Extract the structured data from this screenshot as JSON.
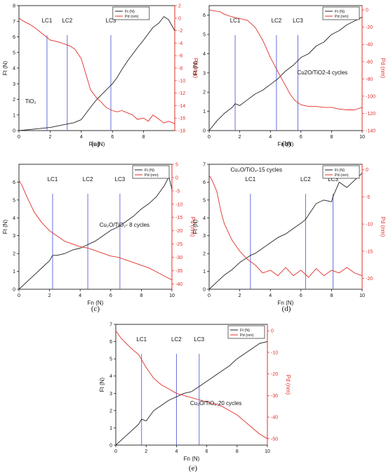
{
  "chart_data": [
    {
      "panel": "a",
      "caption": "(a)",
      "type": "line",
      "xlabel": "Fn (N)",
      "ylabel": "Ft (N)",
      "y2label": "Pd (nm)",
      "xlim": [
        0,
        10
      ],
      "ylim": [
        0,
        8
      ],
      "y2lim": [
        -18,
        2
      ],
      "xticks": [
        0,
        2,
        4,
        6,
        8
      ],
      "xtick_labels": [
        "0",
        "2",
        "4",
        "6",
        "8"
      ],
      "yticks": [
        0,
        1,
        2,
        3,
        4,
        5,
        6,
        7,
        8
      ],
      "ytick_labels": [
        "0",
        "1",
        "2",
        "3",
        "4",
        "5",
        "6",
        "7",
        "8"
      ],
      "y2ticks": [
        -18,
        -16,
        -14,
        -12,
        -10,
        -8,
        -6,
        -4,
        -2,
        0,
        2
      ],
      "y2tick_labels": [
        "-18",
        "-16",
        "-14",
        "-12",
        "-10",
        "-8",
        "-6",
        "-4",
        "-2",
        "0",
        "2"
      ],
      "legend": [
        "Ft (N)",
        "Pd (nm)"
      ],
      "legend_position": "top-center",
      "label": "TiO₂",
      "label_position": "left-middle",
      "critical_loads": [
        {
          "name": "LC1",
          "x": 1.8
        },
        {
          "name": "LC2",
          "x": 3.1
        },
        {
          "name": "LC3",
          "x": 5.9
        }
      ],
      "series": [
        {
          "name": "Ft (N)",
          "axis": "left",
          "x": [
            0,
            0.5,
            1,
            1.5,
            2,
            2.5,
            3,
            3.5,
            4,
            4.3,
            4.6,
            5,
            5.3,
            5.6,
            6,
            6.3,
            6.6,
            7,
            7.3,
            7.6,
            8,
            8.3,
            8.6,
            9,
            9.3,
            9.6,
            10
          ],
          "y": [
            0,
            0.05,
            0.1,
            0.15,
            0.2,
            0.3,
            0.4,
            0.5,
            0.7,
            1.1,
            1.5,
            2.0,
            2.3,
            2.6,
            3.0,
            3.4,
            3.9,
            4.5,
            4.9,
            5.3,
            5.8,
            6.2,
            6.6,
            6.9,
            7.3,
            7.1,
            6.4
          ]
        },
        {
          "name": "Pd (nm)",
          "axis": "right",
          "x": [
            0,
            0.3,
            0.7,
            1,
            1.5,
            2,
            2.5,
            3,
            3.3,
            3.6,
            4,
            4.3,
            4.6,
            5,
            5.3,
            5.6,
            6,
            6.3,
            6.6,
            7,
            7.3,
            7.6,
            8,
            8.3,
            8.6,
            9,
            9.3,
            9.6,
            10
          ],
          "y": [
            0,
            -0.5,
            -1,
            -1.5,
            -2.5,
            -3.5,
            -3.8,
            -4.2,
            -4.5,
            -5,
            -6.5,
            -9,
            -11.5,
            -12.8,
            -13.5,
            -14.3,
            -14.8,
            -15,
            -14.8,
            -15.2,
            -15.5,
            -16.2,
            -16,
            -16.5,
            -15.5,
            -16.2,
            -16.8,
            -16.5,
            -16.9
          ]
        }
      ]
    },
    {
      "panel": "b",
      "caption": "(b)",
      "type": "line",
      "xlabel": "Fn (N)",
      "ylabel": "Ft (N)",
      "y2label": "Pd (nm)",
      "xlim": [
        0,
        10
      ],
      "ylim": [
        0,
        6.5
      ],
      "y2lim": [
        -140,
        5
      ],
      "xticks": [
        0,
        2,
        4,
        6,
        8,
        10
      ],
      "xtick_labels": [
        "0",
        "2",
        "4",
        "6",
        "8",
        "10"
      ],
      "yticks": [
        0,
        1,
        2,
        3,
        4,
        5,
        6
      ],
      "ytick_labels": [
        "0",
        "1",
        "2",
        "3",
        "4",
        "5",
        "6"
      ],
      "y2ticks": [
        -140,
        -120,
        -100,
        -80,
        -60,
        -40,
        -20,
        0
      ],
      "y2tick_labels": [
        "-140",
        "-120",
        "-100",
        "-80",
        "-60",
        "-40",
        "-20",
        "0"
      ],
      "legend": [
        "Ft (N)",
        "Pd (nm)"
      ],
      "legend_position": "top-right",
      "label": "Cu2O/TiO2-4 cycles",
      "label_position": "right-middle",
      "critical_loads": [
        {
          "name": "LC1",
          "x": 1.7
        },
        {
          "name": "LC2",
          "x": 4.4
        },
        {
          "name": "LC3",
          "x": 5.8
        }
      ],
      "series": [
        {
          "name": "Ft (N)",
          "axis": "left",
          "x": [
            0,
            0.5,
            1,
            1.5,
            1.7,
            2,
            2.5,
            3,
            3.5,
            4,
            4.5,
            5,
            5.5,
            6,
            6.5,
            7,
            7.5,
            8,
            8.5,
            9,
            9.5,
            10
          ],
          "y": [
            0,
            0.5,
            0.9,
            1.2,
            1.4,
            1.3,
            1.6,
            1.9,
            2.1,
            2.4,
            2.7,
            3.1,
            3.4,
            3.8,
            4.0,
            4.4,
            4.6,
            5.0,
            5.2,
            5.5,
            5.7,
            5.9
          ]
        },
        {
          "name": "Pd (nm)",
          "axis": "right",
          "x": [
            0,
            0.3,
            0.7,
            1,
            1.5,
            2,
            2.5,
            3,
            3.5,
            4,
            4.5,
            5,
            5.3,
            5.6,
            6,
            6.5,
            7,
            7.5,
            8,
            8.5,
            9,
            9.5,
            10
          ],
          "y": [
            0,
            -1,
            -2,
            -5,
            -8,
            -10,
            -12,
            -20,
            -35,
            -55,
            -72,
            -88,
            -98,
            -105,
            -110,
            -112,
            -112,
            -113,
            -113,
            -115,
            -116,
            -116,
            -113
          ]
        }
      ]
    },
    {
      "panel": "c",
      "caption": "(c)",
      "type": "line",
      "xlabel": "Fn (N)",
      "ylabel": "Ft (N)",
      "y2label": "Pd (nm)",
      "xlim": [
        0,
        10
      ],
      "ylim": [
        0,
        7
      ],
      "y2lim": [
        -42,
        5
      ],
      "xticks": [
        0,
        2,
        4,
        6,
        8,
        10
      ],
      "xtick_labels": [
        "0",
        "2",
        "4",
        "6",
        "8",
        "10"
      ],
      "yticks": [
        0,
        1,
        2,
        3,
        4,
        5,
        6
      ],
      "ytick_labels": [
        "0",
        "1",
        "2",
        "3",
        "4",
        "5",
        "6"
      ],
      "y2ticks": [
        -40,
        -35,
        -30,
        -25,
        -20,
        -15,
        -10,
        -5,
        0,
        5
      ],
      "y2tick_labels": [
        "-40",
        "-35",
        "-30",
        "-25",
        "-20",
        "-15",
        "-10",
        "-5",
        "0",
        "5"
      ],
      "legend": [
        "Ft (N)",
        "Pd (nm)"
      ],
      "legend_position": "top-right",
      "label": "Cu₂O/TiO₂- 8 cycles",
      "label_position": "right-middle",
      "critical_loads": [
        {
          "name": "LC1",
          "x": 2.2
        },
        {
          "name": "LC2",
          "x": 4.5
        },
        {
          "name": "LC3",
          "x": 6.6
        }
      ],
      "series": [
        {
          "name": "Ft (N)",
          "axis": "left",
          "x": [
            0,
            0.5,
            1,
            1.5,
            2,
            2.2,
            2.5,
            3,
            3.5,
            4,
            4.5,
            5,
            5.5,
            6,
            6.5,
            7,
            7.5,
            8,
            8.5,
            9,
            9.5,
            9.8,
            10
          ],
          "y": [
            0,
            0.4,
            0.8,
            1.2,
            1.6,
            1.9,
            1.9,
            2.0,
            2.2,
            2.3,
            2.5,
            2.7,
            3.0,
            3.3,
            3.5,
            3.8,
            4.1,
            4.5,
            4.8,
            5.2,
            5.8,
            6.3,
            5.6
          ]
        },
        {
          "name": "Pd (nm)",
          "axis": "right",
          "x": [
            0,
            0.2,
            0.5,
            1,
            1.5,
            2,
            2.5,
            3,
            3.5,
            4,
            4.5,
            5,
            5.5,
            6,
            6.5,
            7,
            7.5,
            8,
            8.5,
            9,
            9.5,
            10
          ],
          "y": [
            -1,
            -3,
            -7,
            -13,
            -17,
            -20,
            -22,
            -24,
            -25,
            -26,
            -26.5,
            -27.5,
            -28.5,
            -29.5,
            -30,
            -31,
            -32,
            -33,
            -34,
            -35.5,
            -37,
            -38.5
          ]
        }
      ]
    },
    {
      "panel": "d",
      "caption": "(d)",
      "type": "line",
      "xlabel": "Fn (N)",
      "ylabel": "Ft (N)",
      "y2label": "Pd (nm)",
      "xlim": [
        0,
        10
      ],
      "ylim": [
        0,
        7
      ],
      "y2lim": [
        -22,
        1
      ],
      "xticks": [
        0,
        2,
        4,
        6,
        8,
        10
      ],
      "xtick_labels": [
        "0",
        "2",
        "4",
        "6",
        "8",
        "10"
      ],
      "yticks": [
        0,
        1,
        2,
        3,
        4,
        5,
        6,
        7
      ],
      "ytick_labels": [
        "0",
        "1",
        "2",
        "3",
        "4",
        "5",
        "6",
        "7"
      ],
      "y2ticks": [
        -20,
        -15,
        -10,
        -5,
        0
      ],
      "y2tick_labels": [
        "-20",
        "-15",
        "-10",
        "-5",
        "0"
      ],
      "legend": [
        "Ft (N)",
        "Pd (nm)"
      ],
      "legend_position": "top-right",
      "label": "Cu₂O/TiO₂-15 cycles",
      "label_position": "top-left",
      "critical_loads": [
        {
          "name": "LC1",
          "x": 2.7
        },
        {
          "name": "LC2",
          "x": 6.3
        },
        {
          "name": "LC3",
          "x": 8.1
        }
      ],
      "series": [
        {
          "name": "Ft (N)",
          "axis": "left",
          "x": [
            0,
            0.5,
            1,
            1.5,
            2,
            2.7,
            3,
            3.5,
            4,
            4.5,
            5,
            5.5,
            6,
            6.3,
            6.6,
            7,
            7.5,
            8,
            8.1,
            8.5,
            9,
            9.5,
            10
          ],
          "y": [
            0,
            0.4,
            0.8,
            1.1,
            1.5,
            1.9,
            2.0,
            2.3,
            2.6,
            2.9,
            3.1,
            3.4,
            3.7,
            3.9,
            4.3,
            4.8,
            5.0,
            4.9,
            5.2,
            6.0,
            5.7,
            6.1,
            6.5
          ]
        },
        {
          "name": "Pd (nm)",
          "axis": "right",
          "x": [
            0,
            0.2,
            0.5,
            0.8,
            1,
            1.5,
            2,
            2.5,
            3,
            3.5,
            4,
            4.5,
            5,
            5.5,
            6,
            6.5,
            7,
            7.5,
            8,
            8.5,
            9,
            9.5,
            10
          ],
          "y": [
            -1,
            -2,
            -4,
            -8,
            -10,
            -13,
            -15,
            -16.5,
            -17.5,
            -19,
            -18.5,
            -19.5,
            -18,
            -19.5,
            -18.5,
            -19.8,
            -18.2,
            -19.5,
            -18.5,
            -19,
            -18,
            -19,
            -19.5
          ]
        }
      ]
    },
    {
      "panel": "e",
      "caption": "(e)",
      "type": "line",
      "xlabel": "Fn (N)",
      "ylabel": "Ft (N)",
      "y2label": "Pd (nm)",
      "xlim": [
        0,
        10
      ],
      "ylim": [
        0,
        7
      ],
      "y2lim": [
        -53,
        3
      ],
      "xticks": [
        0,
        2,
        4,
        6,
        8,
        10
      ],
      "xtick_labels": [
        "0",
        "2",
        "4",
        "6",
        "8",
        "10"
      ],
      "yticks": [
        0,
        1,
        2,
        3,
        4,
        5,
        6,
        7
      ],
      "ytick_labels": [
        "0",
        "1",
        "2",
        "3",
        "4",
        "5",
        "6",
        "7"
      ],
      "y2ticks": [
        -50,
        -40,
        -30,
        -20,
        -10,
        0
      ],
      "y2tick_labels": [
        "-50",
        "-40",
        "-30",
        "-20",
        "-10",
        "0"
      ],
      "legend": [
        "Ft (N)",
        "Pd (nm)"
      ],
      "legend_position": "top-right",
      "label": "Cu₂O/TiO₂-20 cycles",
      "label_position": "right-middle",
      "critical_loads": [
        {
          "name": "LC1",
          "x": 1.7
        },
        {
          "name": "LC2",
          "x": 4.0
        },
        {
          "name": "LC3",
          "x": 5.5
        }
      ],
      "series": [
        {
          "name": "Ft (N)",
          "axis": "left",
          "x": [
            0,
            0.5,
            1,
            1.5,
            1.7,
            2,
            2.5,
            3,
            3.5,
            4,
            4.5,
            5,
            5.5,
            6,
            6.5,
            7,
            7.5,
            8,
            8.5,
            9,
            9.5,
            10
          ],
          "y": [
            0,
            0.4,
            0.8,
            1.2,
            1.5,
            1.4,
            2.0,
            2.3,
            2.6,
            2.8,
            3.0,
            3.1,
            3.4,
            3.7,
            4.0,
            4.3,
            4.6,
            5.0,
            5.3,
            5.6,
            5.9,
            6.0
          ]
        },
        {
          "name": "Pd (nm)",
          "axis": "right",
          "x": [
            0,
            0.3,
            0.7,
            1,
            1.5,
            2,
            2.5,
            3,
            3.5,
            4,
            4.5,
            5,
            5.5,
            6,
            6.5,
            7,
            7.5,
            8,
            8.5,
            9,
            9.5,
            10
          ],
          "y": [
            0,
            -3,
            -6,
            -8,
            -11,
            -17,
            -22,
            -25,
            -27,
            -29,
            -30,
            -31,
            -32,
            -33,
            -34,
            -35,
            -37,
            -39,
            -42,
            -45,
            -48,
            -50
          ]
        }
      ]
    }
  ],
  "colors": {
    "ft": "#222222",
    "pd": "#e0302a",
    "lc": "#5560d8"
  }
}
